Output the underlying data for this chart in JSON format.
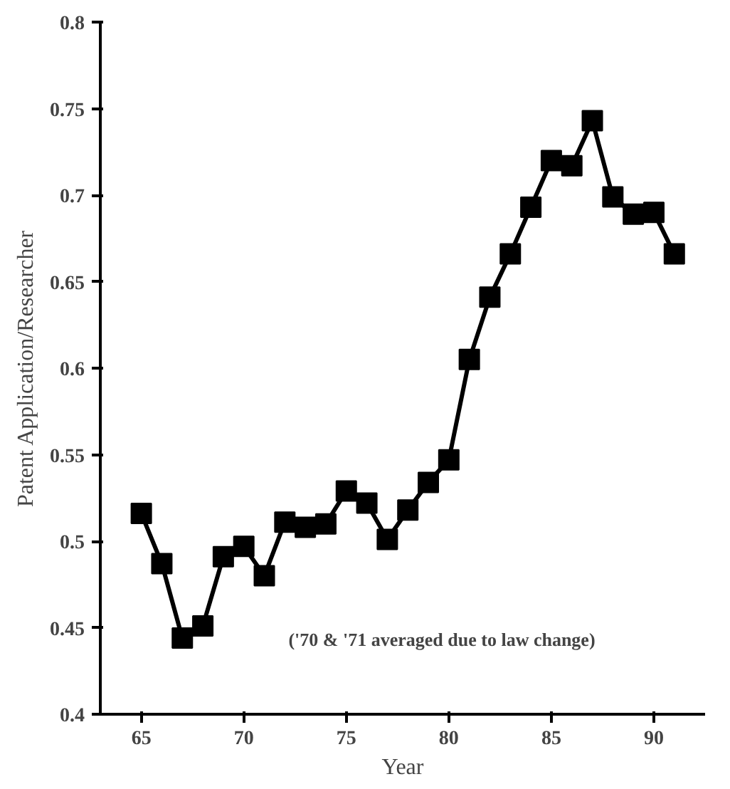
{
  "chart_data": {
    "type": "line",
    "xlabel": "Year",
    "ylabel": "Patent Application/Researcher",
    "x": [
      65,
      66,
      67,
      68,
      69,
      70,
      71,
      72,
      73,
      74,
      75,
      76,
      77,
      78,
      79,
      80,
      81,
      82,
      83,
      84,
      85,
      86,
      87,
      88,
      89,
      90,
      91
    ],
    "series": [
      {
        "color": "#000000",
        "values": [
          0.516,
          0.487,
          0.444,
          0.451,
          0.491,
          0.497,
          0.48,
          0.511,
          0.508,
          0.51,
          0.529,
          0.522,
          0.501,
          0.518,
          0.534,
          0.547,
          0.605,
          0.641,
          0.666,
          0.693,
          0.72,
          0.717,
          0.743,
          0.699,
          0.689,
          0.69,
          0.666
        ]
      }
    ],
    "xlim": [
      63,
      92.5
    ],
    "xticks": [
      65,
      70,
      75,
      80,
      85,
      90
    ],
    "ylim": [
      0.4,
      0.8
    ],
    "yticks": [
      0.4,
      0.45,
      0.5,
      0.55,
      0.6,
      0.65,
      0.7,
      0.75,
      0.8
    ],
    "annotations": [
      "('70 & '71 averaged due to law change)"
    ],
    "marker": "square",
    "line_style": "solid",
    "grid": false
  }
}
